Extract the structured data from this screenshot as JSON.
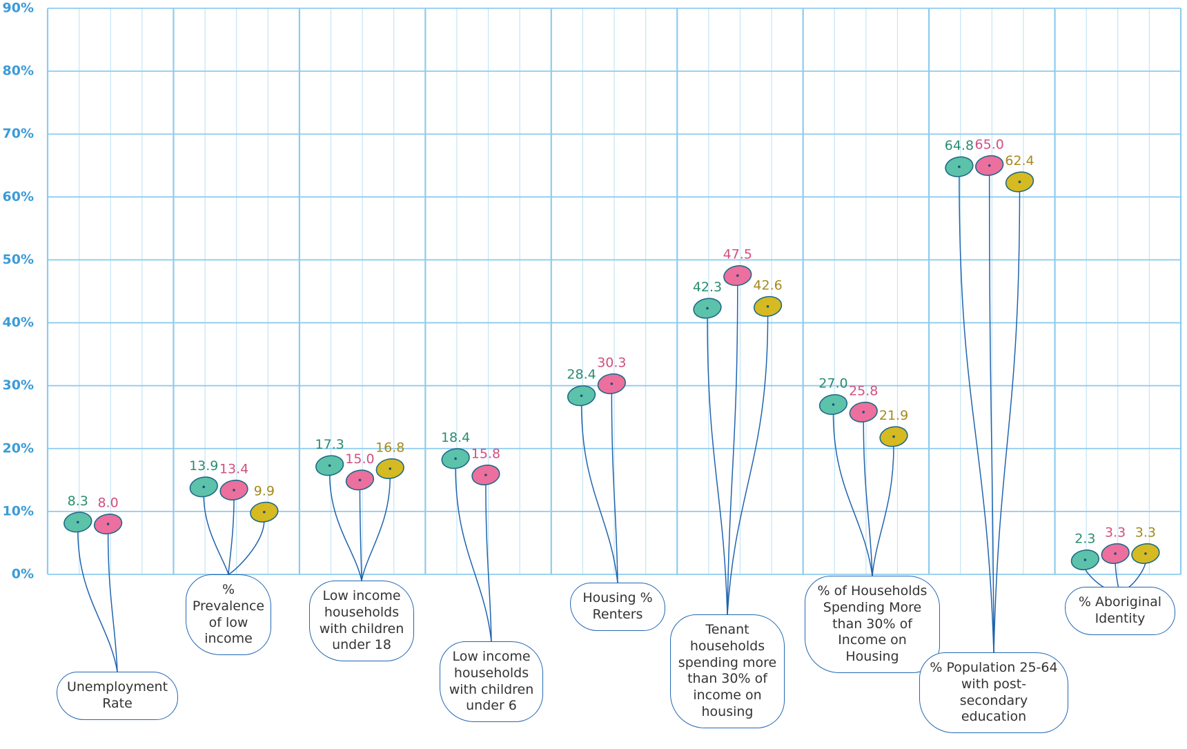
{
  "chart_data": {
    "type": "dot",
    "categories": [
      "Unemployment Rate",
      "% Prevalence of low income",
      "Low income households with children under 18",
      "Low income households with children under 6",
      "Housing % Renters",
      "Tenant households spending more than 30% of income on housing",
      "% of Households Spending More than 30% of Income on Housing",
      "% Population 25-64 with post- secondary education",
      "% Aboriginal Identity"
    ],
    "series": [
      {
        "color": "#5cc2aa",
        "label_color": "#2a8c70",
        "values": [
          8.3,
          13.9,
          17.3,
          18.4,
          28.4,
          42.3,
          27.0,
          64.8,
          2.3
        ],
        "value_labels": [
          "8.3",
          "13.9",
          "17.3",
          "18.4",
          "28.4",
          "42.3",
          "27.0",
          "64.8",
          "2.3"
        ]
      },
      {
        "color": "#ec6f9e",
        "label_color": "#d04f80",
        "values": [
          8.0,
          13.4,
          15.0,
          15.8,
          30.3,
          47.5,
          25.8,
          65.0,
          3.3
        ],
        "value_labels": [
          "8.0",
          "13.4",
          "15.0",
          "15.8",
          "30.3",
          "47.5",
          "25.8",
          "65.0",
          "3.3"
        ]
      },
      {
        "color": "#d6ba22",
        "label_color": "#a48a1c",
        "values": [
          null,
          9.9,
          16.8,
          null,
          null,
          42.6,
          21.9,
          62.4,
          3.3
        ],
        "value_labels": [
          null,
          "9.9",
          "16.8",
          null,
          null,
          "42.6",
          "21.9",
          "62.4",
          "3.3"
        ]
      }
    ],
    "ylim": [
      0,
      90
    ],
    "yticks": [
      {
        "value": 0,
        "label": "0%"
      },
      {
        "value": 10,
        "label": "10%"
      },
      {
        "value": 20,
        "label": "20%"
      },
      {
        "value": 30,
        "label": "30%"
      },
      {
        "value": 40,
        "label": "40%"
      },
      {
        "value": 50,
        "label": "50%"
      },
      {
        "value": 60,
        "label": "60%"
      },
      {
        "value": 70,
        "label": "70%"
      },
      {
        "value": 80,
        "label": "80%"
      },
      {
        "value": 90,
        "label": "90%"
      }
    ],
    "grid": true
  }
}
